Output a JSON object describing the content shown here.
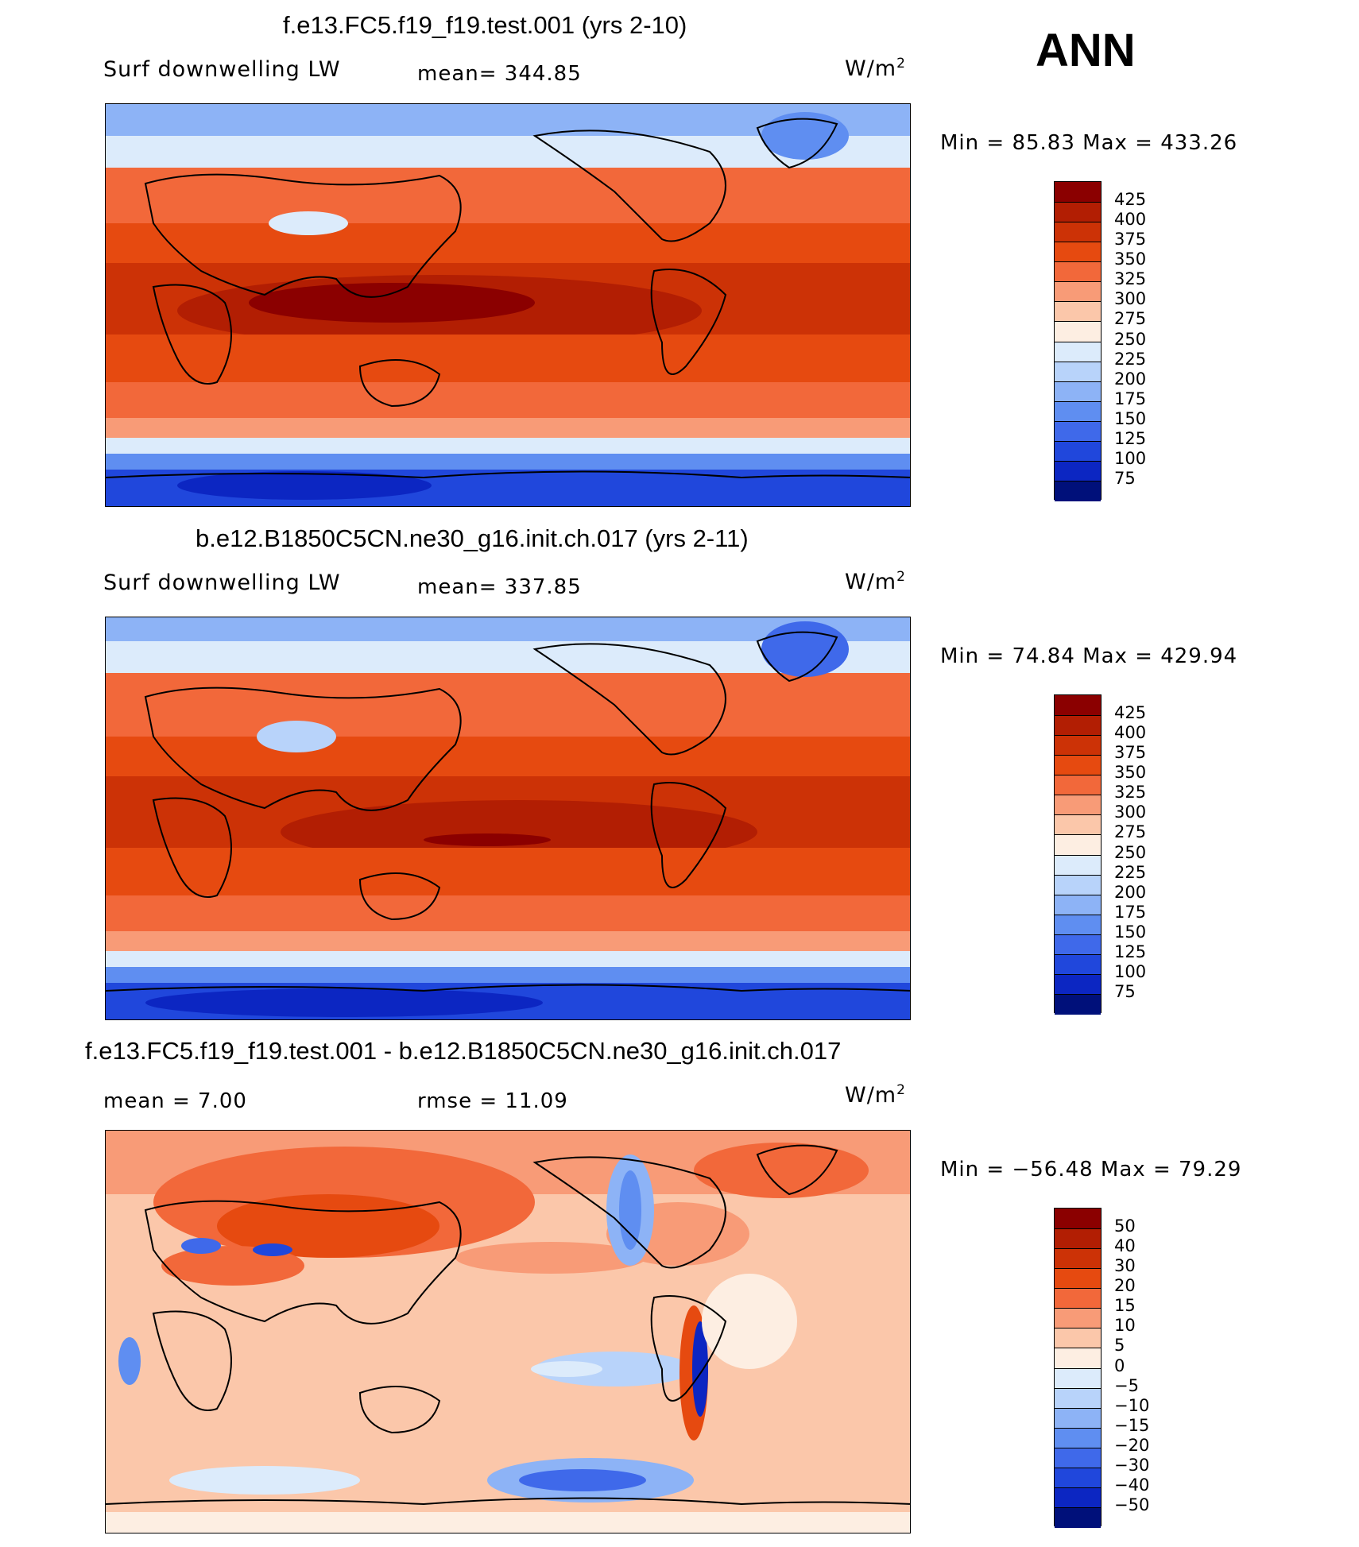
{
  "season_label": "ANN",
  "units": {
    "base": "W/m",
    "exp": "2"
  },
  "panels": [
    {
      "title": "f.e13.FC5.f19_f19.test.001 (yrs 2-10)",
      "field_label": "Surf downwelling LW",
      "stat_text": "mean=  344.85",
      "minmax_text": "Min =   85.83  Max  =  433.26",
      "colorbar_labels": [
        "425",
        "400",
        "375",
        "350",
        "325",
        "300",
        "275",
        "250",
        "225",
        "200",
        "175",
        "150",
        "125",
        "100",
        "75"
      ],
      "colorbar_colors": [
        "#8b0000",
        "#b21e03",
        "#cc3206",
        "#e64a10",
        "#f2683a",
        "#f89b77",
        "#fbc7aa",
        "#fdeee2",
        "#dcebfb",
        "#b8d3fa",
        "#8db3f6",
        "#5f8ef1",
        "#3f69ea",
        "#2047dc",
        "#0c26c2",
        "#00107a"
      ],
      "chart_data": {
        "type": "heatmap",
        "variable": "Surf downwelling LW",
        "domain": "global lat-lon map",
        "mean": 344.85,
        "min": 85.83,
        "max": 433.26,
        "contour_levels": [
          75,
          100,
          125,
          150,
          175,
          200,
          225,
          250,
          275,
          300,
          325,
          350,
          375,
          400,
          425
        ]
      }
    },
    {
      "title": "b.e12.B1850C5CN.ne30_g16.init.ch.017 (yrs 2-11)",
      "field_label": "Surf downwelling LW",
      "stat_text": "mean=  337.85",
      "minmax_text": "Min =   74.84  Max  =  429.94",
      "colorbar_labels": [
        "425",
        "400",
        "375",
        "350",
        "325",
        "300",
        "275",
        "250",
        "225",
        "200",
        "175",
        "150",
        "125",
        "100",
        "75"
      ],
      "colorbar_colors": [
        "#8b0000",
        "#b21e03",
        "#cc3206",
        "#e64a10",
        "#f2683a",
        "#f89b77",
        "#fbc7aa",
        "#fdeee2",
        "#dcebfb",
        "#b8d3fa",
        "#8db3f6",
        "#5f8ef1",
        "#3f69ea",
        "#2047dc",
        "#0c26c2",
        "#00107a"
      ],
      "chart_data": {
        "type": "heatmap",
        "variable": "Surf downwelling LW",
        "domain": "global lat-lon map",
        "mean": 337.85,
        "min": 74.84,
        "max": 429.94,
        "contour_levels": [
          75,
          100,
          125,
          150,
          175,
          200,
          225,
          250,
          275,
          300,
          325,
          350,
          375,
          400,
          425
        ]
      }
    },
    {
      "title": "f.e13.FC5.f19_f19.test.001 - b.e12.B1850C5CN.ne30_g16.init.ch.017",
      "mean_text": "mean =     7.00",
      "rmse_text": "rmse =    11.09",
      "minmax_text": "Min = −56.48  Max  =    79.29",
      "colorbar_labels": [
        "50",
        "40",
        "30",
        "20",
        "15",
        "10",
        "5",
        "0",
        "−5",
        "−10",
        "−15",
        "−20",
        "−30",
        "−40",
        "−50"
      ],
      "colorbar_colors": [
        "#8b0000",
        "#b21e03",
        "#cc3206",
        "#e64a10",
        "#f2683a",
        "#f89b77",
        "#fbc7aa",
        "#fdeee2",
        "#dcebfb",
        "#b8d3fa",
        "#8db3f6",
        "#5f8ef1",
        "#3f69ea",
        "#2047dc",
        "#0c26c2",
        "#00107a"
      ],
      "chart_data": {
        "type": "heatmap",
        "variable": "Surf downwelling LW difference",
        "domain": "global lat-lon map",
        "mean": 7.0,
        "rmse": 11.09,
        "min": -56.48,
        "max": 79.29,
        "contour_levels": [
          -50,
          -40,
          -30,
          -20,
          -15,
          -10,
          -5,
          0,
          5,
          10,
          15,
          20,
          30,
          40,
          50
        ]
      }
    }
  ]
}
